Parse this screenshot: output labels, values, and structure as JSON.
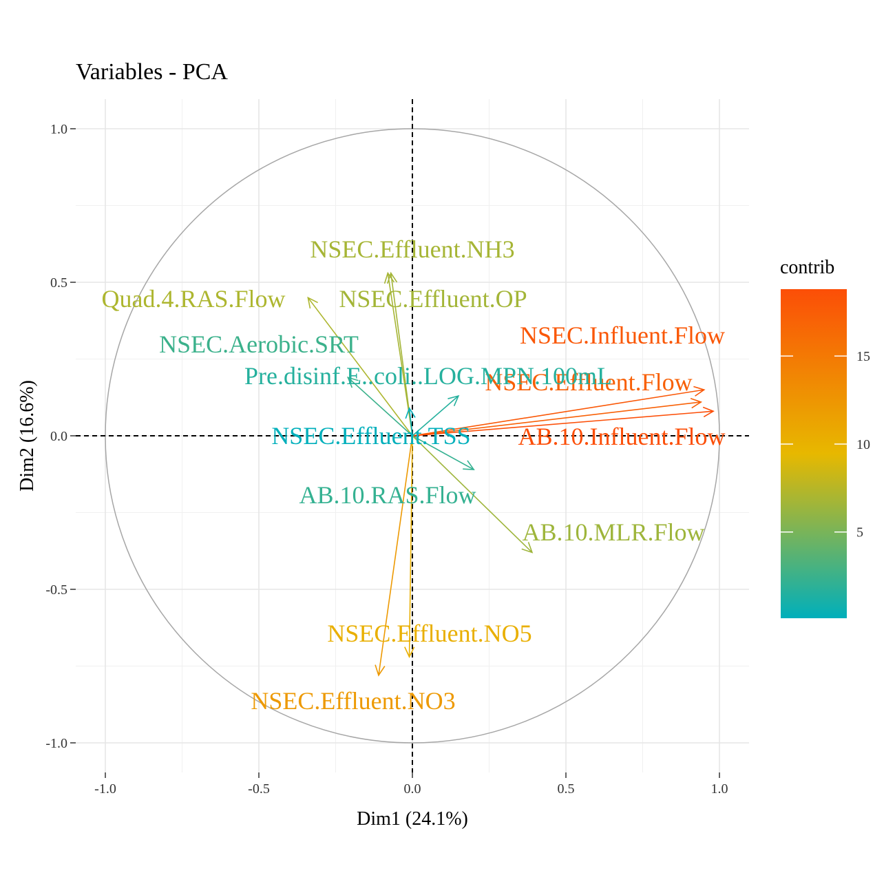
{
  "chart_data": {
    "type": "pca-variables-correlation-circle",
    "title": "Variables - PCA",
    "xlabel": "Dim1 (24.1%)",
    "ylabel": "Dim2 (16.6%)",
    "xlim": [
      -1.1,
      1.1
    ],
    "ylim": [
      -1.1,
      1.1
    ],
    "x_ticks": [
      -1.0,
      -0.5,
      0.0,
      0.5,
      1.0
    ],
    "y_ticks": [
      -1.0,
      -0.5,
      0.0,
      0.5,
      1.0
    ],
    "x_tick_labels": [
      "-1.0",
      "-0.5",
      "0.0",
      "0.5",
      "1.0"
    ],
    "y_tick_labels": [
      "-1.0",
      "-0.5",
      "0.0",
      "0.5",
      "1.0"
    ],
    "grid": true,
    "unit_circle": true,
    "reference_lines": "dashed at x=0 and y=0",
    "legend": {
      "title": "contrib",
      "placement": "right",
      "ticks": [
        5,
        10,
        15
      ],
      "range": [
        0.1,
        18.8
      ],
      "gradient_colors": [
        "#00AFBB",
        "#E7B800",
        "#FC4E07"
      ]
    },
    "variables": [
      {
        "name": "NSEC.Influent.Flow",
        "x": 0.95,
        "y": 0.15,
        "contrib": 18.0
      },
      {
        "name": "NSEC.Effluent.Flow",
        "x": 0.94,
        "y": 0.11,
        "contrib": 17.2
      },
      {
        "name": "AB.10.Influent.Flow",
        "x": 0.98,
        "y": 0.08,
        "contrib": 18.8
      },
      {
        "name": "NSEC.Effluent.NH3",
        "x": -0.08,
        "y": 0.53,
        "contrib": 6.8
      },
      {
        "name": "NSEC.Effluent.OP",
        "x": -0.07,
        "y": 0.53,
        "contrib": 6.7
      },
      {
        "name": "Quad.4.RAS.Flow",
        "x": -0.34,
        "y": 0.45,
        "contrib": 7.1
      },
      {
        "name": "NSEC.Aerobic.SRT",
        "x": -0.21,
        "y": 0.19,
        "contrib": 2.5
      },
      {
        "name": "Pre.disinf.E..coli..LOG.MPN.100mL",
        "x": 0.15,
        "y": 0.13,
        "contrib": 1.6
      },
      {
        "name": "NSEC.Effluent.TSS",
        "x": -0.01,
        "y": 0.09,
        "contrib": 0.1
      },
      {
        "name": "AB.10.RAS.Flow",
        "x": 0.2,
        "y": -0.11,
        "contrib": 2.2
      },
      {
        "name": "AB.10.MLR.Flow",
        "x": 0.39,
        "y": -0.38,
        "contrib": 6.5
      },
      {
        "name": "NSEC.Effluent.NO5",
        "x": -0.01,
        "y": -0.72,
        "contrib": 10.2
      },
      {
        "name": "NSEC.Effluent.NO3",
        "x": -0.11,
        "y": -0.78,
        "contrib": 12.2
      }
    ]
  }
}
